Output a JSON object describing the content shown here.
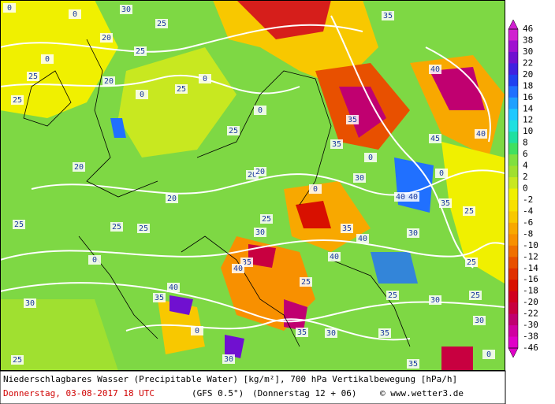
{
  "map": {
    "contour_labels": [
      "30",
      "25",
      "20",
      "25",
      "20",
      "25",
      "25",
      "25",
      "25",
      "20",
      "20",
      "25",
      "25",
      "25",
      "30",
      "25",
      "20",
      "20",
      "35",
      "40",
      "35",
      "35",
      "30",
      "40",
      "40",
      "35",
      "40",
      "30",
      "25",
      "25",
      "40",
      "35",
      "40",
      "40",
      "30",
      "35",
      "25",
      "25",
      "30",
      "25",
      "30",
      "30",
      "35",
      "35",
      "25",
      "30",
      "35",
      "45",
      "35",
      "40"
    ],
    "zero_labels": [
      "0",
      "0",
      "0",
      "0",
      "0",
      "0",
      "0",
      "0",
      "0",
      "0",
      "0",
      "0"
    ]
  },
  "legend": {
    "labels": [
      "46",
      "38",
      "30",
      "22",
      "20",
      "18",
      "16",
      "14",
      "12",
      "10",
      "8",
      "6",
      "4",
      "2",
      "0",
      "-2",
      "-4",
      "-6",
      "-8",
      "-10",
      "-12",
      "-14",
      "-16",
      "-18",
      "-20",
      "-22",
      "-30",
      "-38",
      "-46"
    ],
    "colors": [
      "#d020d0",
      "#a010d0",
      "#7010d0",
      "#4020e0",
      "#2040f0",
      "#2070ff",
      "#20a0ff",
      "#20c8ff",
      "#20e0e0",
      "#20e0a0",
      "#40e060",
      "#80e040",
      "#a0e030",
      "#c8e820",
      "#f0f000",
      "#f8e000",
      "#f8c800",
      "#f8a800",
      "#f89000",
      "#f07000",
      "#e85000",
      "#e03000",
      "#d81000",
      "#d00020",
      "#c80040",
      "#c00070",
      "#d000a0",
      "#e000c8"
    ]
  },
  "footer": {
    "title": "Niederschlagbares Wasser (Precipitable Water) [kg/m²], 700 hPa Vertikalbewegung [hPa/h]",
    "date": "Donnerstag, 03-08-2017  18 UTC",
    "model": "(GFS 0.5°)",
    "run": "(Donnerstag 12 + 06)",
    "credit": "© www.wetter3.de"
  }
}
